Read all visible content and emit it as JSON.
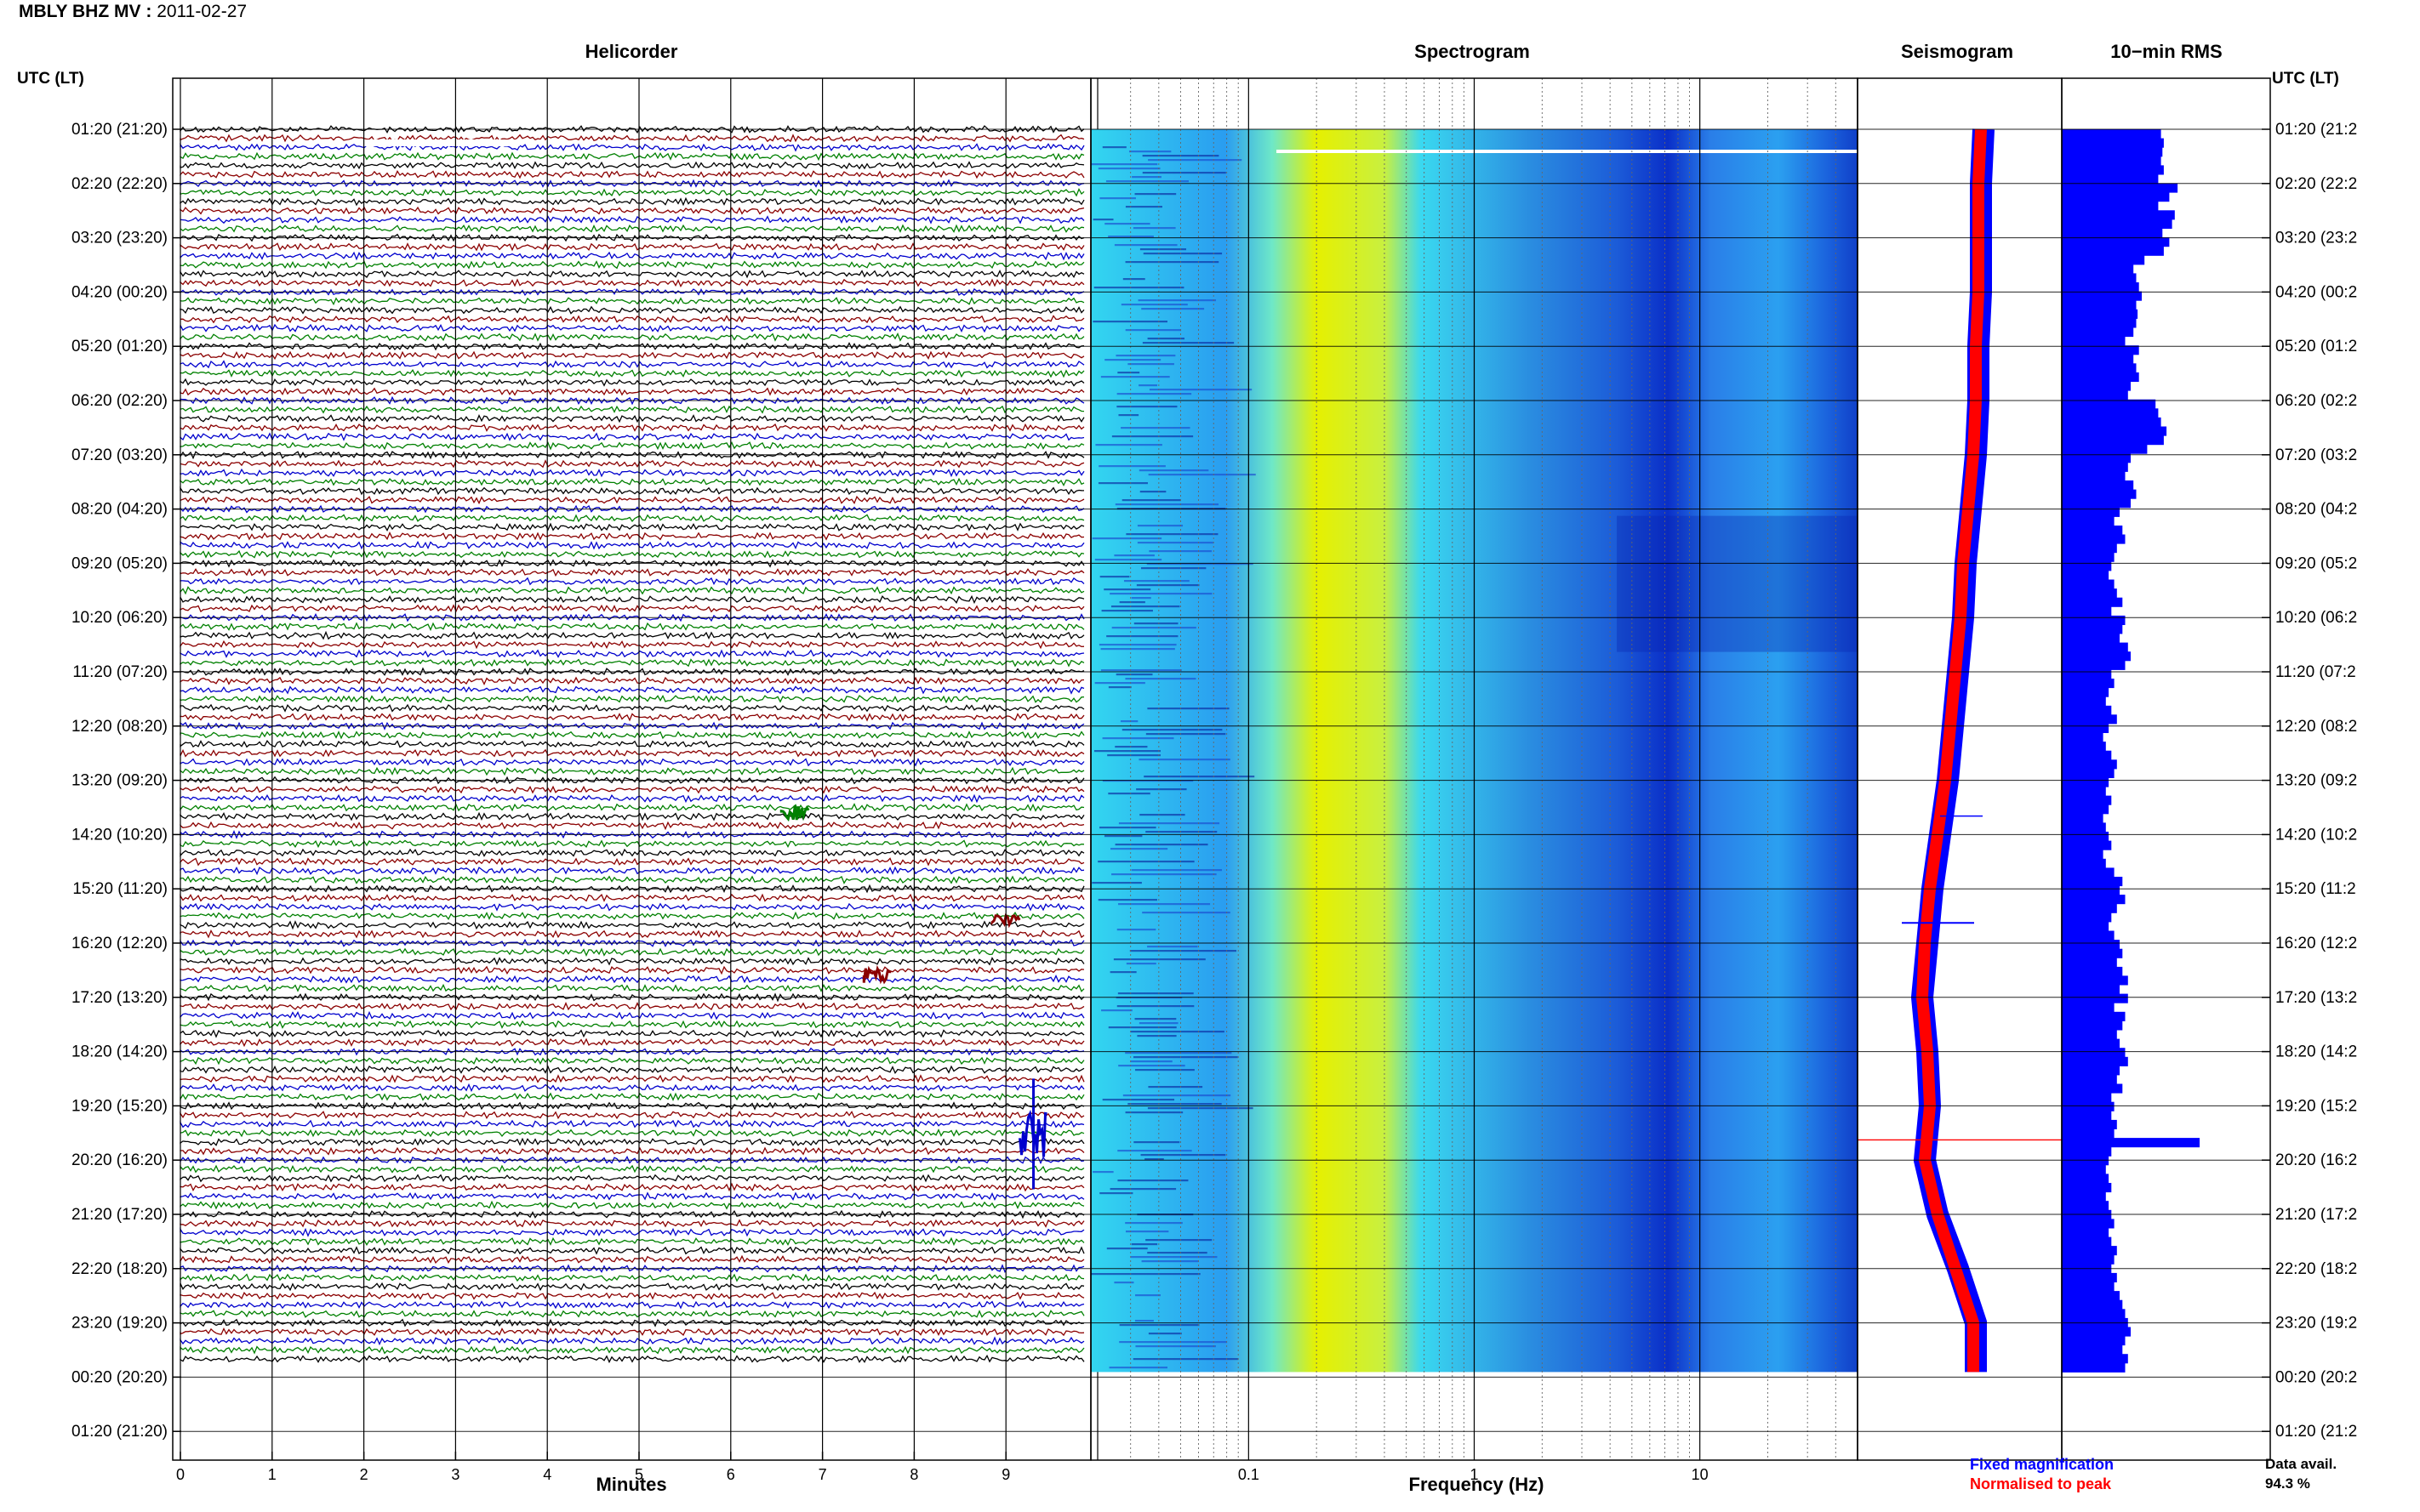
{
  "header": {
    "station": "MBLY BHZ MV :",
    "date": "2011-02-27"
  },
  "time_axis": {
    "label_left": "UTC (LT)",
    "label_right": "UTC (LT)",
    "rows": [
      "01:20 (21:20)",
      "02:20 (22:20)",
      "03:20 (23:20)",
      "04:20 (00:20)",
      "05:20 (01:20)",
      "06:20 (02:20)",
      "07:20 (03:20)",
      "08:20 (04:20)",
      "09:20 (05:20)",
      "10:20 (06:20)",
      "11:20 (07:20)",
      "12:20 (08:20)",
      "13:20 (09:20)",
      "14:20 (10:20)",
      "15:20 (11:20)",
      "16:20 (12:20)",
      "17:20 (13:20)",
      "18:20 (14:20)",
      "19:20 (15:20)",
      "20:20 (16:20)",
      "21:20 (17:20)",
      "22:20 (18:20)",
      "23:20 (19:20)",
      "00:20 (20:20)",
      "01:20 (21:20)"
    ],
    "rows_right": [
      "01:20 (21:2",
      "02:20 (22:2",
      "03:20 (23:2",
      "04:20 (00:2",
      "05:20 (01:2",
      "06:20 (02:2",
      "07:20 (03:2",
      "08:20 (04:2",
      "09:20 (05:2",
      "10:20 (06:2",
      "11:20 (07:2",
      "12:20 (08:2",
      "13:20 (09:2",
      "14:20 (10:2",
      "15:20 (11:2",
      "16:20 (12:2",
      "17:20 (13:2",
      "18:20 (14:2",
      "19:20 (15:2",
      "20:20 (16:2",
      "21:20 (17:2",
      "22:20 (18:2",
      "23:20 (19:2",
      "00:20 (20:2",
      "01:20 (21:2"
    ]
  },
  "panels": {
    "helicorder": {
      "title": "Helicorder",
      "xlabel": "Minutes"
    },
    "spectrogram": {
      "title": "Spectrogram",
      "xlabel": "Frequency (Hz)"
    },
    "seismogram": {
      "title": "Seismogram"
    },
    "rms": {
      "title": "10−min RMS"
    }
  },
  "legend": {
    "fixed": "Fixed magnification",
    "normalised": "Normalised to peak"
  },
  "data_avail": {
    "label": "Data avail.",
    "value": "94.3 %"
  },
  "colors": {
    "trace_cycle": [
      "#000000",
      "#8b0000",
      "#0000cd",
      "#008000"
    ],
    "spectrogram_low": "#0a2fc8",
    "spectrogram_mid": "#33d6f0",
    "spectrogram_high": "#e6f000",
    "seis_fixed": "#0000ff",
    "seis_norm": "#ff0000",
    "rms_bar": "#0000ff"
  },
  "chart_data": [
    {
      "type": "line",
      "panel": "helicorder",
      "title": "Helicorder",
      "xlabel": "Minutes",
      "xlim": [
        0,
        10
      ],
      "xticks": [
        "0",
        "1",
        "2",
        "3",
        "4",
        "5",
        "6",
        "7",
        "8",
        "9"
      ],
      "events": [
        {
          "row_time": "13:20",
          "minute": 6.7,
          "color": "green"
        },
        {
          "row_time": "15:20",
          "minute": 9.0,
          "color": "darkred"
        },
        {
          "row_time": "16:20",
          "minute": 7.6,
          "color": "darkred"
        },
        {
          "row_time": "19:20",
          "minute": 9.3,
          "color": "blue"
        }
      ],
      "gaps": [
        {
          "row_time": "01:20",
          "minute_from": 2.0,
          "minute_to": 3.7
        }
      ]
    },
    {
      "type": "heatmap",
      "panel": "spectrogram",
      "title": "Spectrogram",
      "xlabel": "Frequency (Hz)",
      "xscale": "log",
      "xlim": [
        0.02,
        50
      ],
      "xticks": [
        "0.1",
        "1",
        "10"
      ],
      "peak_band_hz": [
        0.2,
        0.4
      ]
    },
    {
      "type": "line",
      "panel": "seismogram",
      "series": [
        {
          "name": "Fixed magnification",
          "y_row": [
            0,
            1,
            2,
            3,
            4,
            5,
            6,
            7,
            8,
            9,
            10,
            11,
            12,
            13,
            14,
            15,
            16,
            17,
            18,
            19,
            20,
            21,
            22
          ],
          "x_offset": [
            1.1,
            1.0,
            1.0,
            1.0,
            0.9,
            0.9,
            0.8,
            0.6,
            0.4,
            0.3,
            0.1,
            -0.1,
            -0.3,
            -0.6,
            -0.9,
            -1.1,
            -1.3,
            -1.1,
            -1.0,
            -1.2,
            -0.7,
            0.1,
            0.8
          ]
        },
        {
          "name": "Normalised to peak",
          "y_row": [
            0,
            1,
            2,
            3,
            4,
            5,
            6,
            7,
            8,
            9,
            10,
            11,
            12,
            13,
            14,
            15,
            16,
            17,
            18,
            19,
            20,
            21,
            22
          ],
          "x_offset": [
            1.0,
            0.9,
            0.9,
            0.9,
            0.8,
            0.8,
            0.7,
            0.5,
            0.3,
            0.2,
            0.0,
            -0.2,
            -0.4,
            -0.7,
            -1.0,
            -1.2,
            -1.3,
            -1.1,
            -1.0,
            -1.2,
            -0.7,
            0.0,
            0.7
          ]
        }
      ]
    },
    {
      "type": "bar",
      "panel": "rms",
      "title": "10−min RMS",
      "orientation": "horizontal",
      "note": "one bar per 10 minutes, 138 bars from 01:20 to 00:20",
      "values": [
        0.72,
        0.74,
        0.73,
        0.72,
        0.74,
        0.7,
        0.84,
        0.78,
        0.7,
        0.82,
        0.8,
        0.73,
        0.78,
        0.74,
        0.6,
        0.52,
        0.54,
        0.56,
        0.58,
        0.54,
        0.55,
        0.54,
        0.52,
        0.46,
        0.56,
        0.52,
        0.54,
        0.56,
        0.5,
        0.48,
        0.68,
        0.7,
        0.72,
        0.76,
        0.74,
        0.62,
        0.5,
        0.48,
        0.46,
        0.52,
        0.54,
        0.5,
        0.42,
        0.38,
        0.44,
        0.46,
        0.4,
        0.38,
        0.36,
        0.34,
        0.38,
        0.4,
        0.44,
        0.36,
        0.46,
        0.44,
        0.42,
        0.48,
        0.5,
        0.46,
        0.36,
        0.38,
        0.34,
        0.32,
        0.36,
        0.4,
        0.34,
        0.3,
        0.32,
        0.36,
        0.4,
        0.38,
        0.34,
        0.32,
        0.36,
        0.34,
        0.3,
        0.32,
        0.34,
        0.36,
        0.3,
        0.32,
        0.38,
        0.44,
        0.42,
        0.46,
        0.4,
        0.36,
        0.34,
        0.38,
        0.42,
        0.44,
        0.4,
        0.44,
        0.48,
        0.42,
        0.48,
        0.38,
        0.46,
        0.44,
        0.4,
        0.42,
        0.46,
        0.48,
        0.42,
        0.4,
        0.44,
        0.36,
        0.38,
        0.36,
        0.4,
        0.38,
        1.0,
        0.36,
        0.34,
        0.32,
        0.34,
        0.36,
        0.32,
        0.34,
        0.36,
        0.38,
        0.34,
        0.36,
        0.4,
        0.38,
        0.36,
        0.4,
        0.38,
        0.42,
        0.44,
        0.46,
        0.48,
        0.5,
        0.46,
        0.44,
        0.48,
        0.46
      ]
    }
  ]
}
